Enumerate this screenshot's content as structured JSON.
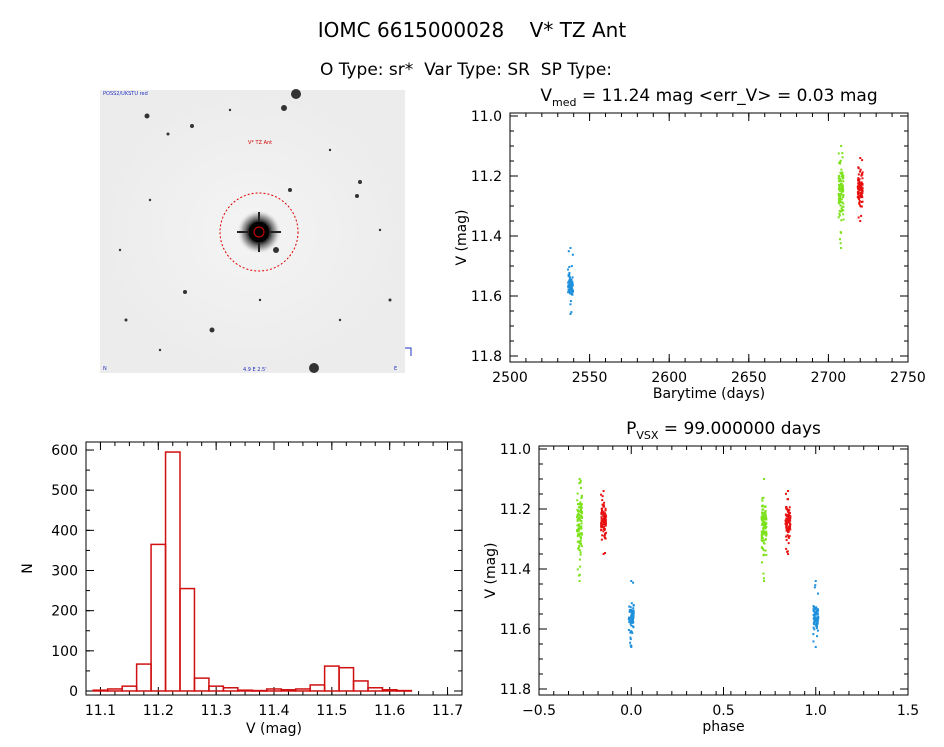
{
  "header": {
    "title": "IOMC 6615000028    V* TZ Ant",
    "subtitle": "O Type: sr*  Var Type: SR  SP Type:"
  },
  "image_panel": {
    "target_label": "V* TZ Ant",
    "corner_top_left": "POSS2/UKSTU red",
    "corner_bottom_center": "4.9 E 2.5'",
    "corner_bottom_left": "N",
    "corner_bottom_right": "E"
  },
  "colors": {
    "blue": "#1e90dc",
    "green": "#7de21c",
    "red": "#e81010",
    "hist": "#d01010"
  },
  "chart_data": [
    {
      "id": "lightcurve",
      "type": "scatter",
      "title_main": "V",
      "title_sub": "med",
      "title_rest": " = 11.24 mag <err_V> = 0.03 mag",
      "xlabel": "Barytime (days)",
      "ylabel": "V (mag)",
      "xlim": [
        2500,
        2750
      ],
      "ylim": [
        11.82,
        10.99
      ],
      "xticks": [
        2500,
        2550,
        2600,
        2650,
        2700,
        2750
      ],
      "xtick_labels": [
        "2500",
        "2550",
        "2600",
        "2650",
        "2700",
        "2750"
      ],
      "yticks": [
        11.0,
        11.2,
        11.4,
        11.6,
        11.8
      ],
      "ytick_labels": [
        "11.0",
        "11.2",
        "11.4",
        "11.6",
        "11.8"
      ],
      "series": [
        {
          "name": "blue",
          "x": 2538,
          "ymin": 11.44,
          "ymax": 11.66,
          "core_min": 11.5,
          "core_max": 11.62,
          "n": 70
        },
        {
          "name": "green",
          "x": 2708,
          "ymin": 11.1,
          "ymax": 11.44,
          "core_min": 11.14,
          "core_max": 11.36,
          "n": 110
        },
        {
          "name": "red",
          "x": 2720,
          "ymin": 11.14,
          "ymax": 11.35,
          "core_min": 11.17,
          "core_max": 11.31,
          "n": 90
        }
      ]
    },
    {
      "id": "histogram",
      "type": "bar",
      "xlabel": "V (mag)",
      "ylabel": "N",
      "xlim": [
        11.075,
        11.725
      ],
      "ylim": [
        -10,
        620
      ],
      "bin_width": 0.025,
      "bins": [
        {
          "x": 11.1,
          "n": 2
        },
        {
          "x": 11.125,
          "n": 5
        },
        {
          "x": 11.15,
          "n": 12
        },
        {
          "x": 11.175,
          "n": 67
        },
        {
          "x": 11.2,
          "n": 365
        },
        {
          "x": 11.225,
          "n": 595
        },
        {
          "x": 11.25,
          "n": 255
        },
        {
          "x": 11.275,
          "n": 32
        },
        {
          "x": 11.3,
          "n": 12
        },
        {
          "x": 11.325,
          "n": 8
        },
        {
          "x": 11.35,
          "n": 2
        },
        {
          "x": 11.375,
          "n": 1
        },
        {
          "x": 11.4,
          "n": 5
        },
        {
          "x": 11.425,
          "n": 3
        },
        {
          "x": 11.45,
          "n": 5
        },
        {
          "x": 11.475,
          "n": 15
        },
        {
          "x": 11.5,
          "n": 62
        },
        {
          "x": 11.525,
          "n": 58
        },
        {
          "x": 11.55,
          "n": 25
        },
        {
          "x": 11.575,
          "n": 8
        },
        {
          "x": 11.6,
          "n": 3
        },
        {
          "x": 11.625,
          "n": 1
        }
      ],
      "xticks": [
        11.1,
        11.2,
        11.3,
        11.4,
        11.5,
        11.6,
        11.7
      ],
      "xtick_labels": [
        "11.1",
        "11.2",
        "11.3",
        "11.4",
        "11.5",
        "11.6",
        "11.7"
      ],
      "yticks": [
        0,
        100,
        200,
        300,
        400,
        500,
        600
      ],
      "ytick_labels": [
        "0",
        "100",
        "200",
        "300",
        "400",
        "500",
        "600"
      ]
    },
    {
      "id": "phased",
      "type": "scatter",
      "title_main": "P",
      "title_sub": "VSX",
      "title_rest": " = 99.000000 days",
      "xlabel": "phase",
      "ylabel": "V (mag)",
      "xlim": [
        -0.5,
        1.5
      ],
      "ylim": [
        11.82,
        10.99
      ],
      "xticks": [
        -0.5,
        0.0,
        0.5,
        1.0,
        1.5
      ],
      "xtick_labels": [
        "−0.5",
        "0.0",
        "0.5",
        "1.0",
        "1.5"
      ],
      "yticks": [
        11.0,
        11.2,
        11.4,
        11.6,
        11.8
      ],
      "ytick_labels": [
        "11.0",
        "11.2",
        "11.4",
        "11.6",
        "11.8"
      ],
      "series": [
        {
          "name": "green",
          "x": -0.28,
          "ymin": 11.1,
          "ymax": 11.44,
          "core_min": 11.14,
          "core_max": 11.36,
          "n": 110
        },
        {
          "name": "red",
          "x": -0.15,
          "ymin": 11.14,
          "ymax": 11.35,
          "core_min": 11.17,
          "core_max": 11.31,
          "n": 90
        },
        {
          "name": "blue",
          "x": 0.0,
          "ymin": 11.44,
          "ymax": 11.66,
          "core_min": 11.5,
          "core_max": 11.62,
          "n": 70
        },
        {
          "name": "green",
          "x": 0.72,
          "ymin": 11.1,
          "ymax": 11.44,
          "core_min": 11.14,
          "core_max": 11.36,
          "n": 110
        },
        {
          "name": "red",
          "x": 0.85,
          "ymin": 11.14,
          "ymax": 11.35,
          "core_min": 11.17,
          "core_max": 11.31,
          "n": 90
        },
        {
          "name": "blue",
          "x": 1.0,
          "ymin": 11.44,
          "ymax": 11.66,
          "core_min": 11.5,
          "core_max": 11.62,
          "n": 70
        }
      ]
    }
  ]
}
